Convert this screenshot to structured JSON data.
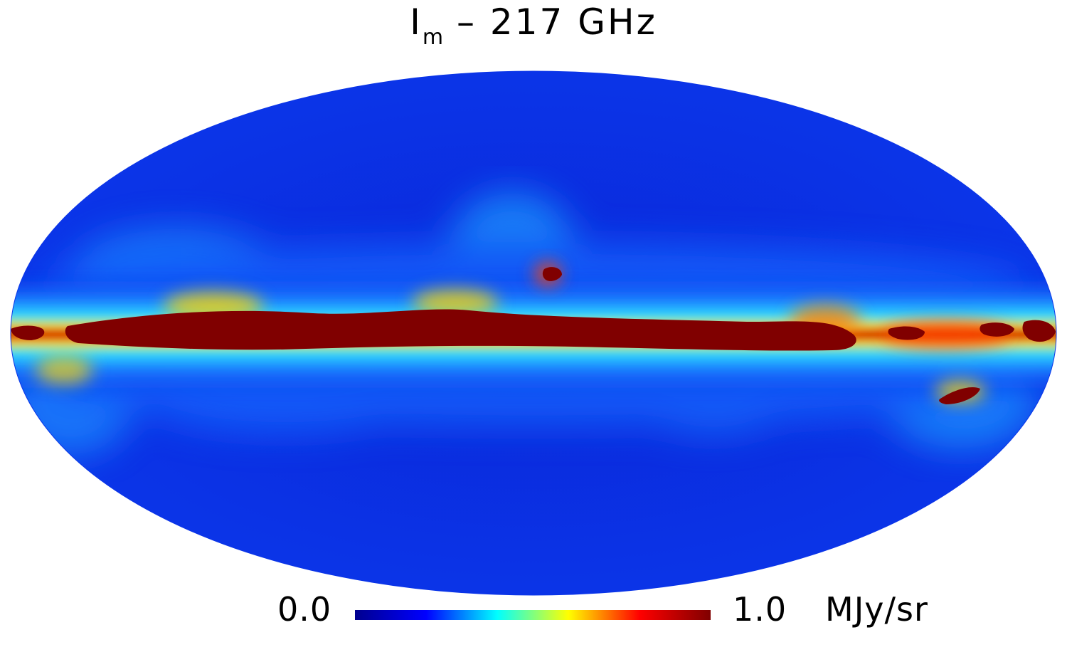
{
  "title": {
    "symbol": "I",
    "subscript": "m",
    "rest": " – 217 GHz"
  },
  "map": {
    "projection": "Mollweide",
    "description_colors": {
      "background": "#0b2ee0",
      "low": "#0a1fd6",
      "mid": "#19e8ff",
      "high": "#ffd400",
      "max": "#800000"
    }
  },
  "colorbar": {
    "min_label": "0.0",
    "max_label": "1.0",
    "unit": "MJy/sr",
    "min_value": 0.0,
    "max_value": 1.0,
    "colormap": "jet",
    "stops": [
      "#00008f",
      "#0000ff",
      "#00ffff",
      "#ffff00",
      "#ff0000",
      "#800000"
    ]
  }
}
